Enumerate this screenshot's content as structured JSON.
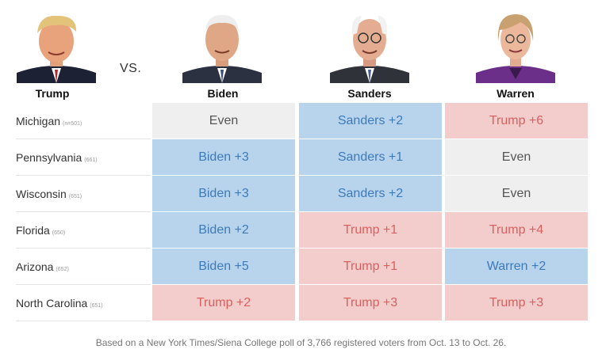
{
  "vs_label": "VS.",
  "candidates": [
    {
      "name": "Trump"
    },
    {
      "name": "Biden"
    },
    {
      "name": "Sanders"
    },
    {
      "name": "Warren"
    }
  ],
  "chart_data": {
    "type": "table",
    "columns": [
      "Biden",
      "Sanders",
      "Warren"
    ],
    "rows": [
      {
        "state": "Michigan",
        "n": "(n=501)",
        "cells": [
          {
            "text": "Even",
            "leader": "even"
          },
          {
            "text": "Sanders +2",
            "leader": "dem"
          },
          {
            "text": "Trump +6",
            "leader": "rep"
          }
        ]
      },
      {
        "state": "Pennsylvania",
        "n": "(661)",
        "cells": [
          {
            "text": "Biden +3",
            "leader": "dem"
          },
          {
            "text": "Sanders +1",
            "leader": "dem"
          },
          {
            "text": "Even",
            "leader": "even"
          }
        ]
      },
      {
        "state": "Wisconsin",
        "n": "(651)",
        "cells": [
          {
            "text": "Biden +3",
            "leader": "dem"
          },
          {
            "text": "Sanders +2",
            "leader": "dem"
          },
          {
            "text": "Even",
            "leader": "even"
          }
        ]
      },
      {
        "state": "Florida",
        "n": "(650)",
        "cells": [
          {
            "text": "Biden +2",
            "leader": "dem"
          },
          {
            "text": "Trump +1",
            "leader": "rep"
          },
          {
            "text": "Trump +4",
            "leader": "rep"
          }
        ]
      },
      {
        "state": "Arizona",
        "n": "(652)",
        "cells": [
          {
            "text": "Biden +5",
            "leader": "dem"
          },
          {
            "text": "Trump +1",
            "leader": "rep"
          },
          {
            "text": "Warren +2",
            "leader": "dem"
          }
        ]
      },
      {
        "state": "North Carolina",
        "n": "(651)",
        "cells": [
          {
            "text": "Trump +2",
            "leader": "rep"
          },
          {
            "text": "Trump +3",
            "leader": "rep"
          },
          {
            "text": "Trump +3",
            "leader": "rep"
          }
        ]
      }
    ]
  },
  "colors": {
    "even_bg": "#efefef",
    "dem_bg": "#b8d4ec",
    "dem_text": "#3d7ab8",
    "rep_bg": "#f3cccc",
    "rep_text": "#d9605e"
  },
  "footnote": "Based on a New York Times/Siena College poll of 3,766 registered voters from Oct. 13 to Oct. 26."
}
